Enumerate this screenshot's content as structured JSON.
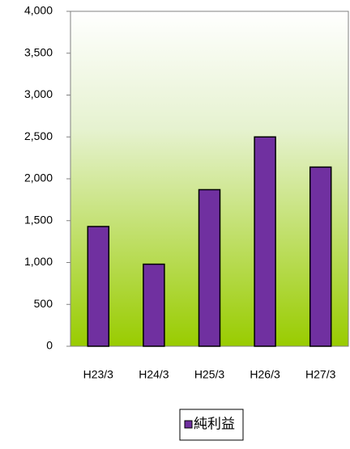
{
  "chart_data": {
    "type": "bar",
    "categories": [
      "H23/3",
      "H24/3",
      "H25/3",
      "H26/3",
      "H27/3"
    ],
    "series": [
      {
        "name": "純利益",
        "color": "#7030a0",
        "values": [
          1430,
          980,
          1870,
          2500,
          2140
        ]
      }
    ],
    "ylim": [
      0,
      4000
    ],
    "yticks": [
      0,
      500,
      {
        "value": 1000,
        "label": "1,000"
      },
      {
        "value": 1500,
        "label": "1,500"
      },
      {
        "value": 2000,
        "label": "2,000"
      },
      {
        "value": 2500,
        "label": "2,500"
      },
      {
        "value": 3000,
        "label": "3,000"
      },
      {
        "value": 3500,
        "label": "3,500"
      },
      {
        "value": 4000,
        "label": "4,000"
      }
    ],
    "legend": "bottom"
  }
}
